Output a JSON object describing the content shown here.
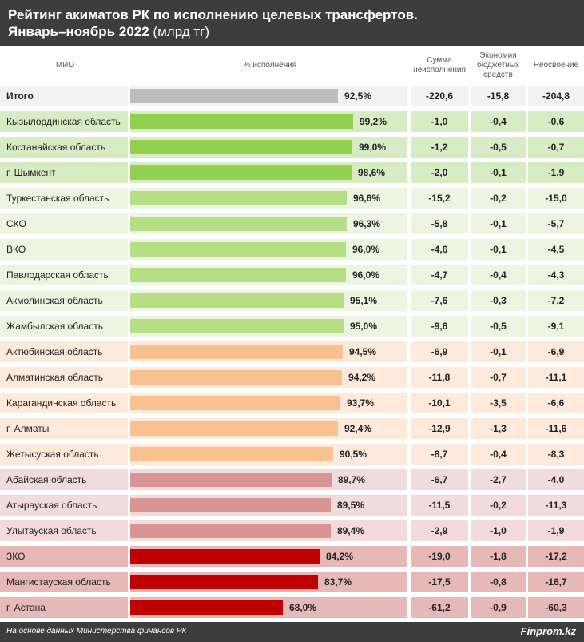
{
  "header": {
    "title": "Рейтинг акиматов РК по исполнению целевых трансфертов.",
    "period": "Январь–ноябрь 2022",
    "unit": "(млрд тг)"
  },
  "columns": {
    "mio": "МИО",
    "pct": "% исполнения",
    "c1": [
      "Сумма",
      "неисполнения"
    ],
    "c2": [
      "Экономия",
      "бюджетных",
      "средств"
    ],
    "c3": [
      "Неосвоение"
    ]
  },
  "palette": {
    "total_bar": "#bdbdbd",
    "dark_green": "#92d050",
    "light_green": "#b4df85",
    "orange": "#f8c18f",
    "pink": "#d99594",
    "red": "#c00000"
  },
  "chart_data": {
    "type": "bar",
    "orientation": "horizontal",
    "xlim": [
      0,
      100
    ],
    "rows": [
      {
        "name": "Итого",
        "pct": 92.5,
        "pct_label": "92,5%",
        "c1": "-220,6",
        "c2": "-15,8",
        "c3": "-204,8",
        "group": "total"
      },
      {
        "name": "Кызылординская область",
        "pct": 99.2,
        "pct_label": "99,2%",
        "c1": "-1,0",
        "c2": "-0,4",
        "c3": "-0,6",
        "group": "dark_green"
      },
      {
        "name": "Костанайская область",
        "pct": 99.0,
        "pct_label": "99,0%",
        "c1": "-1,2",
        "c2": "-0,5",
        "c3": "-0,7",
        "group": "dark_green"
      },
      {
        "name": "г. Шымкент",
        "pct": 98.6,
        "pct_label": "98,6%",
        "c1": "-2,0",
        "c2": "-0,1",
        "c3": "-1,9",
        "group": "dark_green"
      },
      {
        "name": "Туркестанская область",
        "pct": 96.6,
        "pct_label": "96,6%",
        "c1": "-15,2",
        "c2": "-0,2",
        "c3": "-15,0",
        "group": "light_green"
      },
      {
        "name": "СКО",
        "pct": 96.3,
        "pct_label": "96,3%",
        "c1": "-5,8",
        "c2": "-0,1",
        "c3": "-5,7",
        "group": "light_green"
      },
      {
        "name": "ВКО",
        "pct": 96.0,
        "pct_label": "96,0%",
        "c1": "-4,6",
        "c2": "-0,1",
        "c3": "-4,5",
        "group": "light_green"
      },
      {
        "name": "Павлодарская область",
        "pct": 96.0,
        "pct_label": "96,0%",
        "c1": "-4,7",
        "c2": "-0,4",
        "c3": "-4,3",
        "group": "light_green"
      },
      {
        "name": "Акмолинская область",
        "pct": 95.1,
        "pct_label": "95,1%",
        "c1": "-7,6",
        "c2": "-0,3",
        "c3": "-7,2",
        "group": "light_green"
      },
      {
        "name": "Жамбылская  область",
        "pct": 95.0,
        "pct_label": "95,0%",
        "c1": "-9,6",
        "c2": "-0,5",
        "c3": "-9,1",
        "group": "light_green"
      },
      {
        "name": "Актюбинская область",
        "pct": 94.5,
        "pct_label": "94,5%",
        "c1": "-6,9",
        "c2": "-0,1",
        "c3": "-6,9",
        "group": "orange"
      },
      {
        "name": "Алматинская область",
        "pct": 94.2,
        "pct_label": "94,2%",
        "c1": "-11,8",
        "c2": "-0,7",
        "c3": "-11,1",
        "group": "orange"
      },
      {
        "name": "Карагандинская область",
        "pct": 93.7,
        "pct_label": "93,7%",
        "c1": "-10,1",
        "c2": "-3,5",
        "c3": "-6,6",
        "group": "orange"
      },
      {
        "name": "г. Алматы",
        "pct": 92.4,
        "pct_label": "92,4%",
        "c1": "-12,9",
        "c2": "-1,3",
        "c3": "-11,6",
        "group": "orange"
      },
      {
        "name": "Жетысуская область",
        "pct": 90.5,
        "pct_label": "90,5%",
        "c1": "-8,7",
        "c2": "-0,4",
        "c3": "-8,3",
        "group": "orange"
      },
      {
        "name": "Абайская область",
        "pct": 89.7,
        "pct_label": "89,7%",
        "c1": "-6,7",
        "c2": "-2,7",
        "c3": "-4,0",
        "group": "pink"
      },
      {
        "name": "Атырауская область",
        "pct": 89.5,
        "pct_label": "89,5%",
        "c1": "-11,5",
        "c2": "-0,2",
        "c3": "-11,3",
        "group": "pink"
      },
      {
        "name": "Улытауская область",
        "pct": 89.4,
        "pct_label": "89,4%",
        "c1": "-2,9",
        "c2": "-1,0",
        "c3": "-1,9",
        "group": "pink"
      },
      {
        "name": "ЗКО",
        "pct": 84.2,
        "pct_label": "84,2%",
        "c1": "-19,0",
        "c2": "-1,8",
        "c3": "-17,2",
        "group": "red"
      },
      {
        "name": "Мангистауская область",
        "pct": 83.7,
        "pct_label": "83,7%",
        "c1": "-17,5",
        "c2": "-0,8",
        "c3": "-16,7",
        "group": "red"
      },
      {
        "name": "г. Астана",
        "pct": 68.0,
        "pct_label": "68,0%",
        "c1": "-61,2",
        "c2": "-0,9",
        "c3": "-60,3",
        "group": "red"
      }
    ]
  },
  "footer": {
    "source": "На основе данных Министерства финансов РК",
    "brand": "Finprom.kz"
  }
}
